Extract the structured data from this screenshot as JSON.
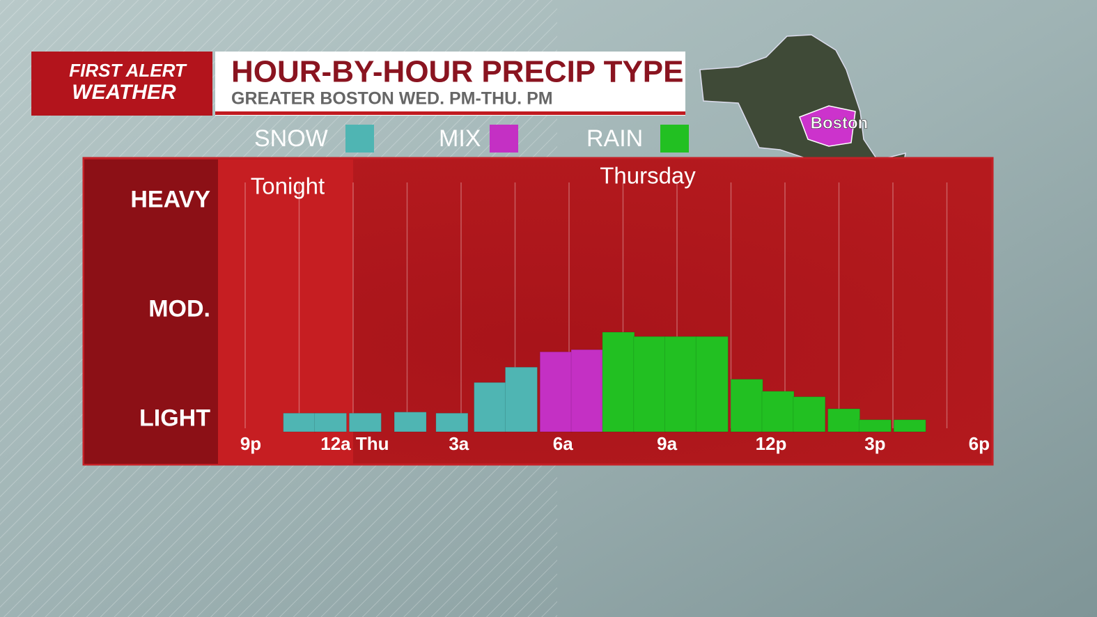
{
  "chart_data": {
    "type": "bar",
    "logo": [
      "FIRST ALERT",
      "WEATHER"
    ],
    "title": "HOUR-BY-HOUR PRECIP TYPE",
    "subtitle": "GREATER BOSTON WED. PM-THU. PM",
    "annotations": [
      "Tonight",
      "Thursday"
    ],
    "map_label": "Boston",
    "xlim": [
      -0.9,
      21.4
    ],
    "xticks": [
      {
        "value": 0,
        "label": "9p"
      },
      {
        "value": 3,
        "label": "12a Thu"
      },
      {
        "value": 6,
        "label": "3a"
      },
      {
        "value": 9,
        "label": "6a"
      },
      {
        "value": 12,
        "label": "9a"
      },
      {
        "value": 15,
        "label": "12p"
      },
      {
        "value": 18,
        "label": "3p"
      },
      {
        "value": 21,
        "label": "6p"
      }
    ],
    "ylim": [
      0.89,
      3.39
    ],
    "yticks": [
      {
        "value": 1,
        "label": "LIGHT"
      },
      {
        "value": 2,
        "label": "MOD."
      },
      {
        "value": 3,
        "label": "HEAVY"
      }
    ],
    "series": [
      {
        "name": "SNOW",
        "color": "#4fb5b3",
        "x": [
          1.4,
          2.3,
          3.3,
          4.6,
          5.8,
          6.9,
          7.8
        ],
        "values": [
          1.06,
          1.06,
          1.06,
          1.07,
          1.06,
          1.34,
          1.48
        ]
      },
      {
        "name": "MIX",
        "color": "#c430c4",
        "x": [
          8.8,
          9.7
        ],
        "values": [
          1.62,
          1.64
        ]
      },
      {
        "name": "RAIN",
        "color": "#22c022",
        "x": [
          10.6,
          11.5,
          12.4,
          13.3,
          14.3,
          15.2,
          16.1,
          17.1,
          18.0,
          19.0
        ],
        "values": [
          1.8,
          1.76,
          1.76,
          1.76,
          1.37,
          1.26,
          1.21,
          1.1,
          1.0,
          1.0
        ]
      }
    ]
  }
}
